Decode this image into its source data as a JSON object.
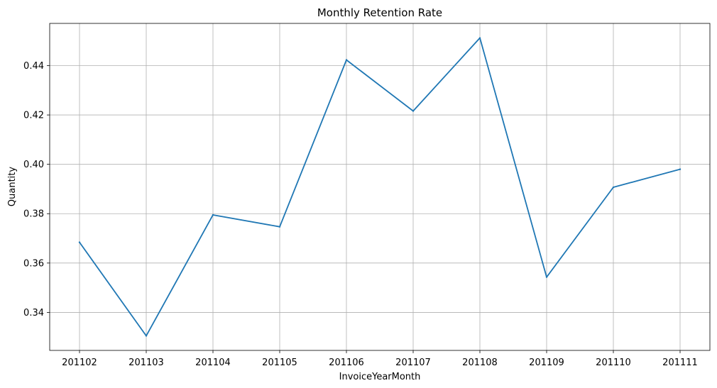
{
  "chart_data": {
    "type": "line",
    "title": "Monthly Retention Rate",
    "xlabel": "InvoiceYearMonth",
    "ylabel": "Quantity",
    "categories": [
      "201102",
      "201103",
      "201104",
      "201105",
      "201106",
      "201107",
      "201108",
      "201109",
      "201110",
      "201111"
    ],
    "series": [
      {
        "values": [
          0.3684,
          0.3305,
          0.3795,
          0.3747,
          0.4423,
          0.4216,
          0.4512,
          0.3543,
          0.3907,
          0.398
        ],
        "color": "#1f77b4"
      }
    ],
    "ylim": [
      0.3246,
      0.4571
    ],
    "yticks": [
      0.34,
      0.36,
      0.38,
      0.4,
      0.42,
      0.44
    ],
    "ytick_labels": [
      "0.34",
      "0.36",
      "0.38",
      "0.40",
      "0.42",
      "0.44"
    ],
    "grid": true,
    "legend": "none"
  }
}
